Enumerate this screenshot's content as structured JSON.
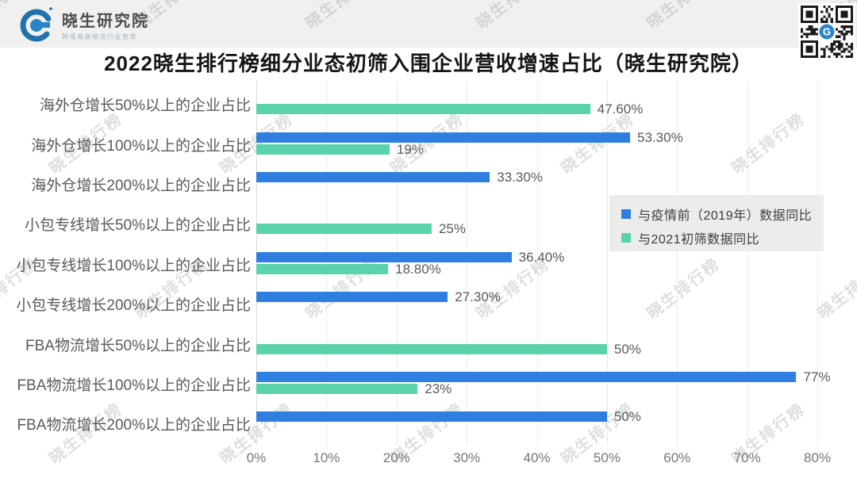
{
  "page": {
    "watermark_text": "晓生排行榜",
    "background": "#ffffff",
    "top_band_color": "#f0f1ef"
  },
  "header": {
    "logo": {
      "brand": "晓生研究院",
      "tagline": "跨境电商物流行业智库",
      "mark_color": "#1f72ad"
    },
    "qr_code": {
      "center_glyph": "G",
      "color": "#1a1a1a"
    }
  },
  "title": "2022晓生排行榜细分业态初筛入围企业营收增速占比（晓生研究院）",
  "chart_data": {
    "type": "bar",
    "orientation": "horizontal",
    "title": "2022晓生排行榜细分业态初筛入围企业营收增速占比（晓生研究院）",
    "categories": [
      "海外仓增长50%以上的企业占比",
      "海外仓增长100%以上的企业占比",
      "海外仓增长200%以上的企业占比",
      "小包专线增长50%以上的企业占比",
      "小包专线增长100%以上的企业占比",
      "小包专线增长200%以上的企业占比",
      "FBA物流增长50%以上的企业占比",
      "FBA物流增长100%以上的企业占比",
      "FBA物流增长200%以上的企业占比"
    ],
    "series": [
      {
        "name": "与疫情前（2019年）数据同比",
        "color": "#2e7fdf",
        "values": [
          null,
          53.3,
          33.3,
          null,
          36.4,
          27.3,
          null,
          77,
          50
        ],
        "labels": [
          "",
          "53.30%",
          "33.30%",
          "",
          "36.40%",
          "27.30%",
          "",
          "77%",
          "50%"
        ]
      },
      {
        "name": "与2021初筛数据同比",
        "color": "#5ad2ab",
        "values": [
          47.6,
          19,
          null,
          25,
          18.8,
          null,
          50,
          23,
          null
        ],
        "labels": [
          "47.60%",
          "19%",
          "",
          "25%",
          "18.80%",
          "",
          "50%",
          "23%",
          ""
        ]
      }
    ],
    "xlim": [
      0,
      80
    ],
    "x_ticks": [
      "0%",
      "10%",
      "20%",
      "30%",
      "40%",
      "50%",
      "60%",
      "70%",
      "80%"
    ],
    "grid": "vertical",
    "legend_position": "middle-right"
  }
}
